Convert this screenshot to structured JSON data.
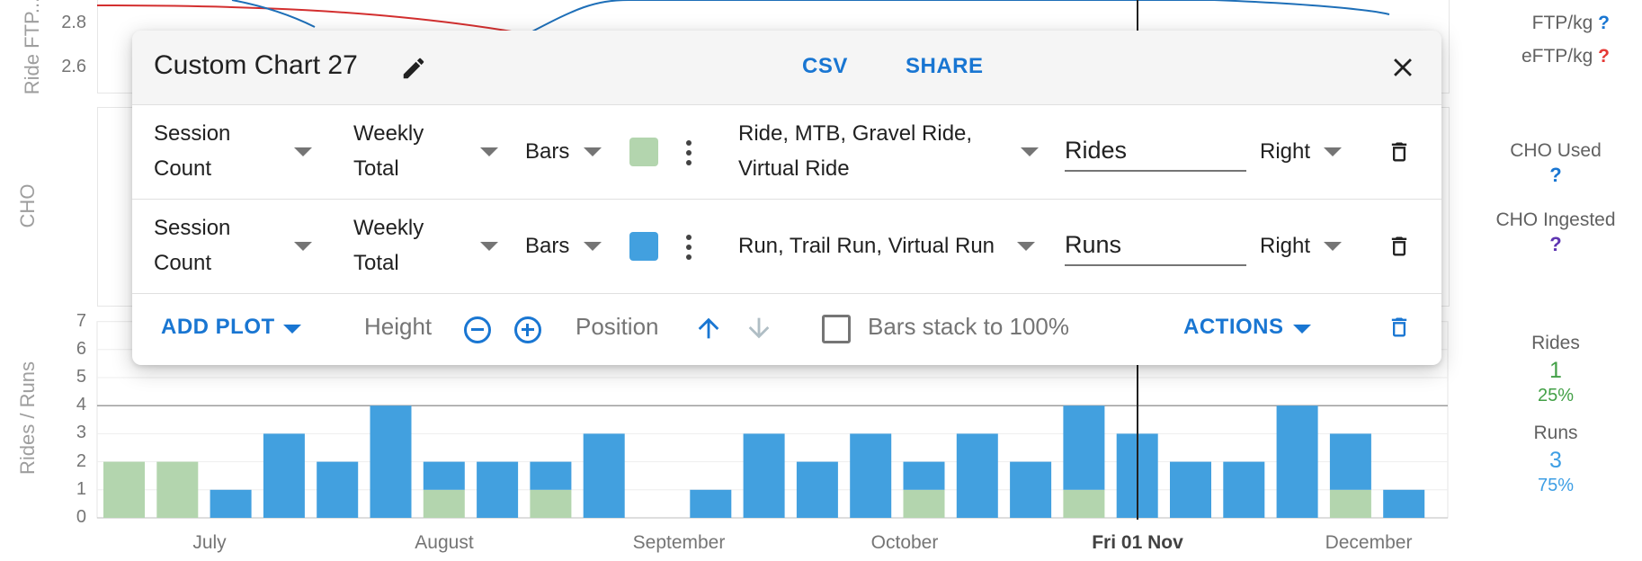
{
  "top_panel": {
    "ylabel": "Ride FTP...",
    "ticks": [
      "2.8",
      "2.6"
    ],
    "legend": [
      {
        "label": "FTP/kg",
        "help": "?",
        "help_color": "#1976d2"
      },
      {
        "label": "eFTP/kg",
        "help": "?",
        "help_color": "#e53935"
      }
    ]
  },
  "cho_panel": {
    "ylabel": "CHO",
    "legend": [
      {
        "label": "CHO Used",
        "help": "?",
        "help_color": "#1976d2"
      },
      {
        "label": "CHO Ingested",
        "help": "?",
        "help_color": "#5e35b1"
      }
    ]
  },
  "runs_panel": {
    "ylabel": "Rides / Runs",
    "legend": {
      "rides_label": "Rides",
      "rides_value": "1",
      "rides_pct": "25%",
      "rides_color": "#43a047",
      "runs_label": "Runs",
      "runs_value": "3",
      "runs_pct": "75%",
      "runs_color": "#3d9ee4"
    }
  },
  "chart_data": {
    "type": "bar",
    "stacked": true,
    "ylim": [
      0,
      7
    ],
    "y_ticks": [
      "0",
      "1",
      "2",
      "3",
      "4",
      "5",
      "6",
      "7"
    ],
    "x_ticks": [
      "July",
      "August",
      "September",
      "October",
      "Fri 01 Nov",
      "December"
    ],
    "highlight_tick": "Fri 01 Nov",
    "series": [
      {
        "name": "Rides",
        "color": "#b3d5ae",
        "values": [
          2,
          2,
          0,
          0,
          0,
          0,
          1,
          0,
          1,
          0,
          0,
          0,
          0,
          0,
          0,
          1,
          0,
          0,
          1,
          0,
          0,
          0,
          0,
          1,
          0
        ]
      },
      {
        "name": "Runs",
        "color": "#42a0df",
        "values": [
          0,
          0,
          1,
          3,
          2,
          4,
          1,
          2,
          1,
          3,
          0,
          1,
          3,
          2,
          3,
          1,
          3,
          2,
          3,
          3,
          2,
          2,
          4,
          2,
          1
        ]
      }
    ]
  },
  "dialog": {
    "title": "Custom Chart 27",
    "csv_label": "CSV",
    "share_label": "SHARE",
    "rows": [
      {
        "metric_line1": "Session",
        "metric_line2": "Count",
        "agg_line1": "Weekly",
        "agg_line2": "Total",
        "type": "Bars",
        "color": "#b3d5ae",
        "sports_line1": "Ride, MTB, Gravel Ride,",
        "sports_line2": "Virtual Ride",
        "name": "Rides",
        "axis": "Right"
      },
      {
        "metric_line1": "Session",
        "metric_line2": "Count",
        "agg_line1": "Weekly",
        "agg_line2": "Total",
        "type": "Bars",
        "color": "#42a0df",
        "sports_line1": "Run, Trail Run, Virtual Run",
        "sports_line2": "",
        "name": "Runs",
        "axis": "Right"
      }
    ],
    "footer": {
      "add_plot": "ADD PLOT",
      "height_label": "Height",
      "position_label": "Position",
      "stack_label": "Bars stack to 100%",
      "actions": "ACTIONS"
    }
  }
}
